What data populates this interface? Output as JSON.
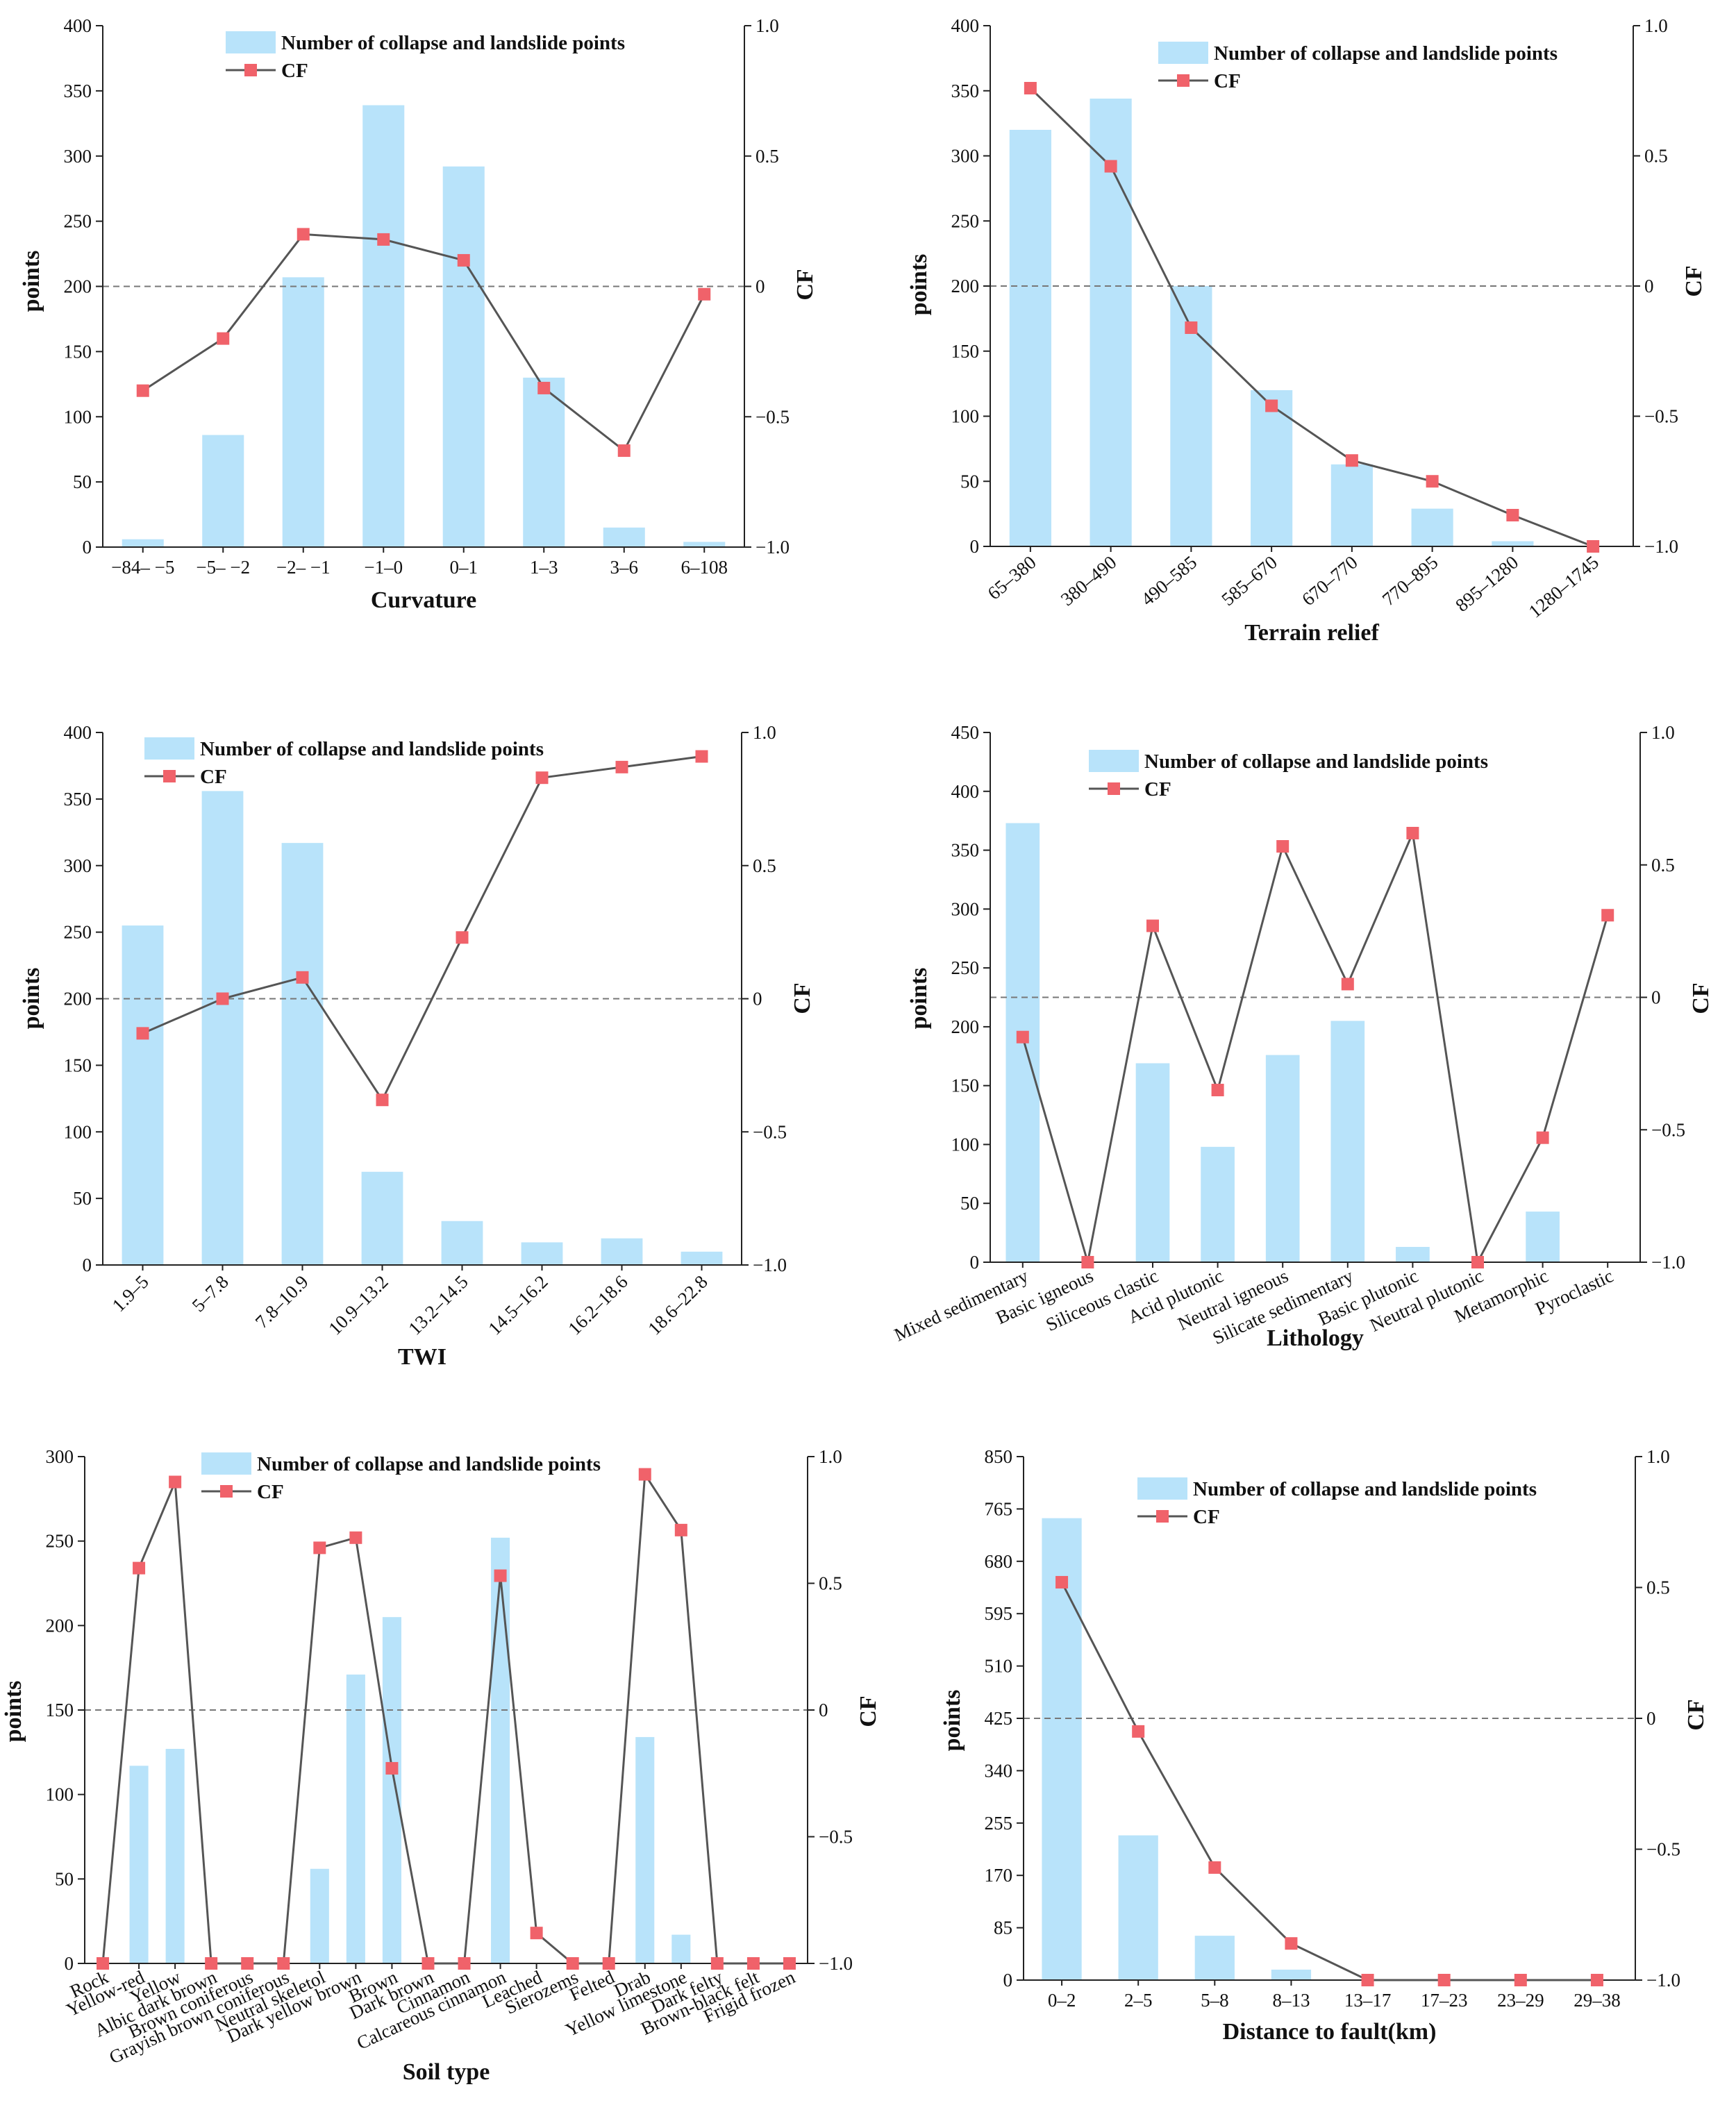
{
  "style": {
    "bar_color": "#b8e3fa",
    "line_color": "#555555",
    "marker_color": "#f0626a",
    "zero_line_color": "#777777"
  },
  "legend": {
    "bar_label": "Number of collapse and landslide points",
    "line_label": "CF"
  },
  "chart_data": [
    {
      "type": "bar",
      "categories": [
        "−84– −5",
        "−5– −2",
        "−2– −1",
        "−1–0",
        "0–1",
        "1–3",
        "3–6",
        "6–108"
      ],
      "series": [
        {
          "name": "Number of collapse and landslide points",
          "axis": "left",
          "values": [
            6,
            86,
            207,
            339,
            292,
            130,
            15,
            4
          ]
        },
        {
          "name": "CF",
          "axis": "right",
          "type": "line",
          "values": [
            -0.4,
            -0.2,
            0.2,
            0.18,
            0.1,
            -0.39,
            -0.63,
            -0.03
          ]
        }
      ],
      "xlabel": "Curvature",
      "ylabel": "points",
      "y2label": "CF",
      "ylim": [
        0,
        400
      ],
      "yticks": [
        0,
        50,
        100,
        150,
        200,
        250,
        300,
        350,
        400
      ],
      "y2lim": [
        -1,
        1
      ],
      "y2ticks": [
        "−1.0",
        "−0.5",
        "0",
        "0.5",
        "1.0"
      ],
      "xtick_rotation": 0,
      "legend_position": "top-center"
    },
    {
      "type": "bar",
      "categories": [
        "65–380",
        "380–490",
        "490–585",
        "585–670",
        "670–770",
        "770–895",
        "895–1280",
        "1280–1745"
      ],
      "series": [
        {
          "name": "Number of collapse and landslide points",
          "axis": "left",
          "values": [
            320,
            344,
            200,
            120,
            63,
            29,
            4,
            0
          ]
        },
        {
          "name": "CF",
          "axis": "right",
          "type": "line",
          "values": [
            0.76,
            0.46,
            -0.16,
            -0.46,
            -0.67,
            -0.75,
            -0.88,
            -1.0
          ]
        }
      ],
      "xlabel": "Terrain relief",
      "ylabel": "points",
      "y2label": "CF",
      "ylim": [
        0,
        400
      ],
      "yticks": [
        0,
        50,
        100,
        150,
        200,
        250,
        300,
        350,
        400
      ],
      "y2lim": [
        -1,
        1
      ],
      "y2ticks": [
        "−1.0",
        "−0.5",
        "0",
        "0.5",
        "1.0"
      ],
      "xtick_rotation": -40,
      "legend_position": "top-right"
    },
    {
      "type": "bar",
      "categories": [
        "1.9–5",
        "5–7.8",
        "7.8–10.9",
        "10.9–13.2",
        "13.2–14.5",
        "14.5–16.2",
        "16.2–18.6",
        "18.6–22.8"
      ],
      "series": [
        {
          "name": "Number of collapse and landslide points",
          "axis": "left",
          "values": [
            255,
            356,
            317,
            70,
            33,
            17,
            20,
            10
          ]
        },
        {
          "name": "CF",
          "axis": "right",
          "type": "line",
          "values": [
            -0.13,
            0.0,
            0.08,
            -0.38,
            0.23,
            0.83,
            0.87,
            0.91
          ]
        }
      ],
      "xlabel": "TWI",
      "ylabel": "points",
      "y2label": "CF",
      "ylim": [
        0,
        400
      ],
      "yticks": [
        0,
        50,
        100,
        150,
        200,
        250,
        300,
        350,
        400
      ],
      "y2lim": [
        -1,
        1
      ],
      "y2ticks": [
        "−1.0",
        "−0.5",
        "0",
        "0.5",
        "1.0"
      ],
      "xtick_rotation": -45,
      "legend_position": "top-center"
    },
    {
      "type": "bar",
      "categories": [
        "Mixed sedimentary",
        "Basic igneous",
        "Siliceous clastic",
        "Acid plutonic",
        "Neutral igneous",
        "Silicate sedimentary",
        "Basic plutonic",
        "Neutral plutonic",
        "Metamorphic",
        "Pyroclastic"
      ],
      "series": [
        {
          "name": "Number of collapse and landslide points",
          "axis": "left",
          "values": [
            373,
            0,
            169,
            98,
            176,
            205,
            13,
            0,
            43,
            0
          ]
        },
        {
          "name": "CF",
          "axis": "right",
          "type": "line",
          "values": [
            -0.15,
            -1.0,
            0.27,
            -0.35,
            0.57,
            0.05,
            0.62,
            -1.0,
            -0.53,
            0.31
          ]
        }
      ],
      "xlabel": "Lithology",
      "ylabel": "points",
      "y2label": "CF",
      "ylim": [
        0,
        450
      ],
      "yticks": [
        0,
        50,
        100,
        150,
        200,
        250,
        300,
        350,
        400,
        450
      ],
      "y2lim": [
        -1,
        1
      ],
      "y2ticks": [
        "−1.0",
        "−0.5",
        "0",
        "0.5",
        "1.0"
      ],
      "xtick_rotation": -25,
      "legend_position": "top-center"
    },
    {
      "type": "bar",
      "categories": [
        "Rock",
        "Yellow-red",
        "Yellow",
        "Albic dark brown",
        "Brown coniferous",
        "Grayish brown coniferous",
        "Neutral skeletol",
        "Dark yellow brown",
        "Brown",
        "Dark brown",
        "Cinnamon",
        "Calcareous cinnamon",
        "Leached",
        "Sierozems",
        "Felted",
        "Drab",
        "Yellow limestone",
        "Dark felty",
        "Brown-black felt",
        "Frigid frozen"
      ],
      "series": [
        {
          "name": "Number of collapse and landslide points",
          "axis": "left",
          "values": [
            0,
            117,
            127,
            0,
            0,
            0,
            56,
            171,
            205,
            0,
            0,
            252,
            0,
            0,
            0,
            134,
            17,
            0,
            0,
            0
          ]
        },
        {
          "name": "CF",
          "axis": "right",
          "type": "line",
          "values": [
            -1.0,
            0.56,
            0.9,
            -1.0,
            -1.0,
            -1.0,
            0.64,
            0.68,
            -0.23,
            -1.0,
            -1.0,
            0.53,
            -0.88,
            -1.0,
            -1.0,
            0.93,
            0.71,
            -1.0,
            -1.0,
            -1.0
          ]
        }
      ],
      "xlabel": "Soil type",
      "ylabel": "points",
      "y2label": "CF",
      "ylim": [
        0,
        300
      ],
      "yticks": [
        0,
        50,
        100,
        150,
        200,
        250,
        300
      ],
      "y2lim": [
        -1,
        1
      ],
      "y2ticks": [
        "−1.0",
        "−0.5",
        "0",
        "0.5",
        "1.0"
      ],
      "xtick_rotation": -25,
      "legend_position": "top-center"
    },
    {
      "type": "bar",
      "categories": [
        "0–2",
        "2–5",
        "5–8",
        "8–13",
        "13–17",
        "17–23",
        "23–29",
        "29–38"
      ],
      "series": [
        {
          "name": "Number of collapse and landslide points",
          "axis": "left",
          "values": [
            750,
            235,
            72,
            17,
            0,
            0,
            0,
            0
          ]
        },
        {
          "name": "CF",
          "axis": "right",
          "type": "line",
          "values": [
            0.52,
            -0.05,
            -0.57,
            -0.86,
            -1.0,
            -1.0,
            -1.0,
            -1.0
          ]
        }
      ],
      "xlabel": "Distance to fault(km)",
      "ylabel": "points",
      "y2label": "CF",
      "ylim": [
        0,
        850
      ],
      "yticks": [
        0,
        85,
        170,
        255,
        340,
        425,
        510,
        595,
        680,
        765,
        850
      ],
      "y2lim": [
        -1,
        1
      ],
      "y2ticks": [
        "−1.0",
        "−0.5",
        "0",
        "0.5",
        "1.0"
      ],
      "xtick_rotation": 0,
      "legend_position": "top-center"
    }
  ]
}
